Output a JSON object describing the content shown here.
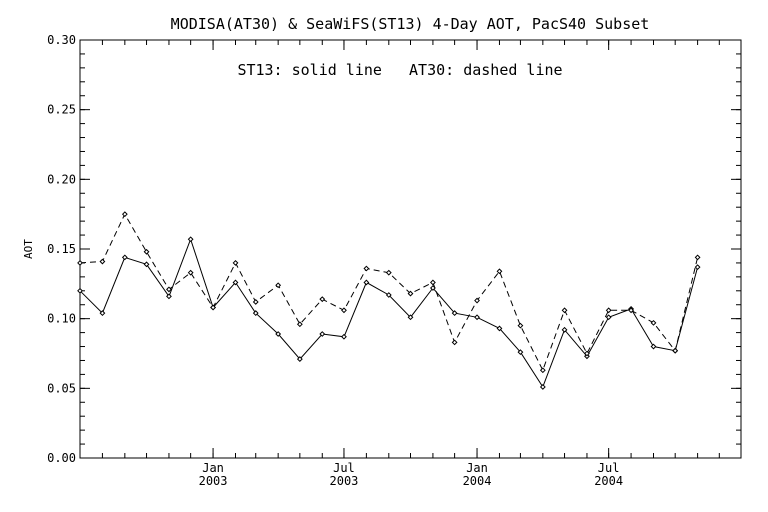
{
  "chart_data": {
    "type": "line",
    "title": "MODISA(AT30) & SeaWiFS(ST13) 4-Day AOT, PacS40 Subset",
    "annotation": "ST13: solid line   AT30: dashed line",
    "xlabel": "",
    "ylabel": "AOT",
    "ylim": [
      0.0,
      0.3
    ],
    "yticks": [
      "0.00",
      "0.05",
      "0.10",
      "0.15",
      "0.20",
      "0.25",
      "0.30"
    ],
    "xlim": [
      "2002-07-01",
      "2004-12-31"
    ],
    "xticks": [
      {
        "date": "2003-01-01",
        "month": "Jan",
        "year": "2003"
      },
      {
        "date": "2003-07-01",
        "month": "Jul",
        "year": "2003"
      },
      {
        "date": "2004-01-01",
        "month": "Jan",
        "year": "2004"
      },
      {
        "date": "2004-07-01",
        "month": "Jul",
        "year": "2004"
      }
    ],
    "x": [
      "2002-07-01",
      "2002-08-01",
      "2002-09-01",
      "2002-10-01",
      "2002-11-01",
      "2002-12-01",
      "2003-01-01",
      "2003-02-01",
      "2003-03-01",
      "2003-04-01",
      "2003-05-01",
      "2003-06-01",
      "2003-07-01",
      "2003-08-01",
      "2003-09-01",
      "2003-10-01",
      "2003-11-01",
      "2003-12-01",
      "2004-01-01",
      "2004-02-01",
      "2004-03-01",
      "2004-04-01",
      "2004-05-01",
      "2004-06-01",
      "2004-07-01",
      "2004-08-01",
      "2004-09-01",
      "2004-10-01",
      "2004-11-01",
      "2004-12-01",
      "2004-12-31"
    ],
    "series": [
      {
        "name": "ST13",
        "line_style": "solid",
        "values": [
          0.12,
          0.104,
          0.144,
          0.139,
          0.116,
          0.157,
          0.108,
          0.126,
          0.104,
          0.089,
          0.071,
          0.089,
          0.087,
          0.126,
          0.117,
          0.101,
          0.122,
          0.104,
          0.101,
          0.093,
          0.076,
          0.051,
          0.092,
          0.073,
          0.101,
          0.107,
          0.08,
          0.077,
          0.137,
          null,
          null
        ]
      },
      {
        "name": "AT30",
        "line_style": "dashed",
        "values": [
          0.14,
          0.141,
          0.175,
          0.148,
          0.121,
          0.133,
          0.108,
          0.14,
          0.112,
          0.124,
          0.096,
          0.114,
          0.106,
          0.136,
          0.133,
          0.118,
          0.126,
          0.083,
          0.113,
          0.134,
          0.095,
          0.063,
          0.106,
          0.075,
          0.106,
          0.106,
          0.097,
          0.077,
          0.144,
          null,
          null
        ]
      }
    ],
    "grid": false,
    "legend": "none",
    "colors": {
      "background": "#ffffff",
      "lines": "#000000"
    }
  }
}
